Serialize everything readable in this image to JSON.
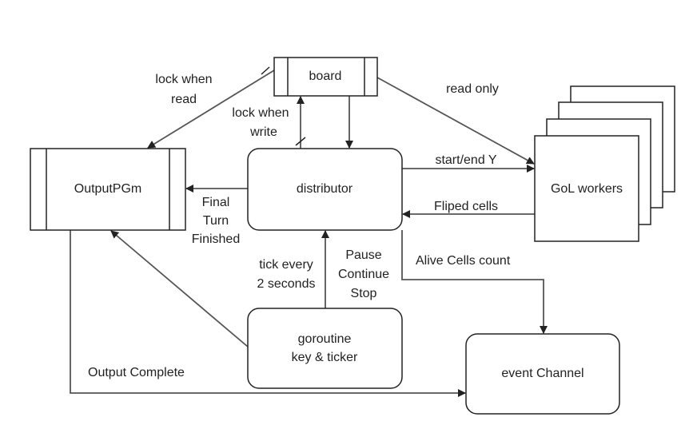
{
  "nodes": [
    {
      "label": "board"
    },
    {
      "label": "OutputPGm"
    },
    {
      "label": "distributor"
    },
    {
      "label": "GoL workers"
    },
    {
      "label": [
        "goroutine",
        "key & ticker"
      ]
    },
    {
      "label": "event Channel"
    }
  ],
  "edges": [
    {
      "label": [
        "lock when",
        "read"
      ]
    },
    {
      "label": "read only"
    },
    {
      "label": [
        "lock when",
        "write"
      ]
    },
    {
      "label": "start/end Y"
    },
    {
      "label": "Fliped cells"
    },
    {
      "label": [
        "Final",
        "Turn",
        "Finished"
      ]
    },
    {
      "label": [
        "tick every",
        "2 seconds"
      ]
    },
    {
      "label": [
        "Pause",
        "Continue",
        "Stop"
      ]
    },
    {
      "label": "Alive Cells count"
    },
    {
      "label": "Output Complete"
    }
  ]
}
